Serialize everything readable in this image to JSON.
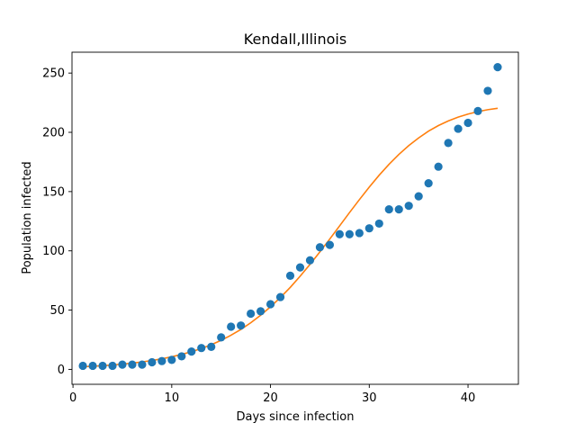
{
  "chart_data": {
    "type": "scatter",
    "title": "Kendall,Illinois",
    "xlabel": "Days since infection",
    "ylabel": "Population infected",
    "xlim": [
      -0.1,
      45.1
    ],
    "ylim": [
      -12.6,
      267.6
    ],
    "xticks": [
      0,
      10,
      20,
      30,
      40
    ],
    "yticks": [
      0,
      50,
      100,
      150,
      200,
      250
    ],
    "grid": false,
    "colors": {
      "points": "#1f77b4",
      "fit": "#ff7f0e"
    },
    "series": [
      {
        "kind": "scatter",
        "x": [
          1,
          2,
          3,
          4,
          5,
          6,
          7,
          8,
          9,
          10,
          11,
          12,
          13,
          14,
          15,
          16,
          17,
          18,
          19,
          20,
          21,
          22,
          23,
          24,
          25,
          26,
          27,
          28,
          29,
          30,
          31,
          32,
          33,
          34,
          35,
          36,
          37,
          38,
          39,
          40,
          41,
          42,
          43
        ],
        "values": [
          3,
          3,
          3,
          3,
          4,
          4,
          4,
          6,
          7,
          8,
          11,
          15,
          18,
          19,
          27,
          36,
          37,
          47,
          49,
          55,
          61,
          79,
          86,
          92,
          103,
          105,
          114,
          114,
          115,
          119,
          123,
          135,
          135,
          138,
          146,
          157,
          171,
          191,
          203,
          208,
          218,
          235,
          255
        ]
      },
      {
        "kind": "line",
        "x": [
          1,
          2,
          3,
          4,
          5,
          6,
          7,
          8,
          9,
          10,
          11,
          12,
          13,
          14,
          15,
          16,
          17,
          18,
          19,
          20,
          21,
          22,
          23,
          24,
          25,
          26,
          27,
          28,
          29,
          30,
          31,
          32,
          33,
          34,
          35,
          36,
          37,
          38,
          39,
          40,
          41,
          42,
          43
        ],
        "values": [
          2.2,
          2.6,
          3.1,
          3.7,
          4.4,
          5.3,
          6.3,
          7.5,
          8.9,
          10.6,
          12.6,
          14.9,
          17.6,
          20.8,
          24.5,
          28.8,
          33.7,
          39.3,
          45.7,
          52.8,
          60.6,
          69.2,
          78.6,
          88.6,
          99.1,
          110,
          121.1,
          132.3,
          143.2,
          153.8,
          163.8,
          173,
          181.4,
          188.8,
          195.3,
          201,
          205.7,
          209.6,
          212.8,
          215.4,
          217.5,
          219.1,
          220.3
        ]
      }
    ]
  }
}
